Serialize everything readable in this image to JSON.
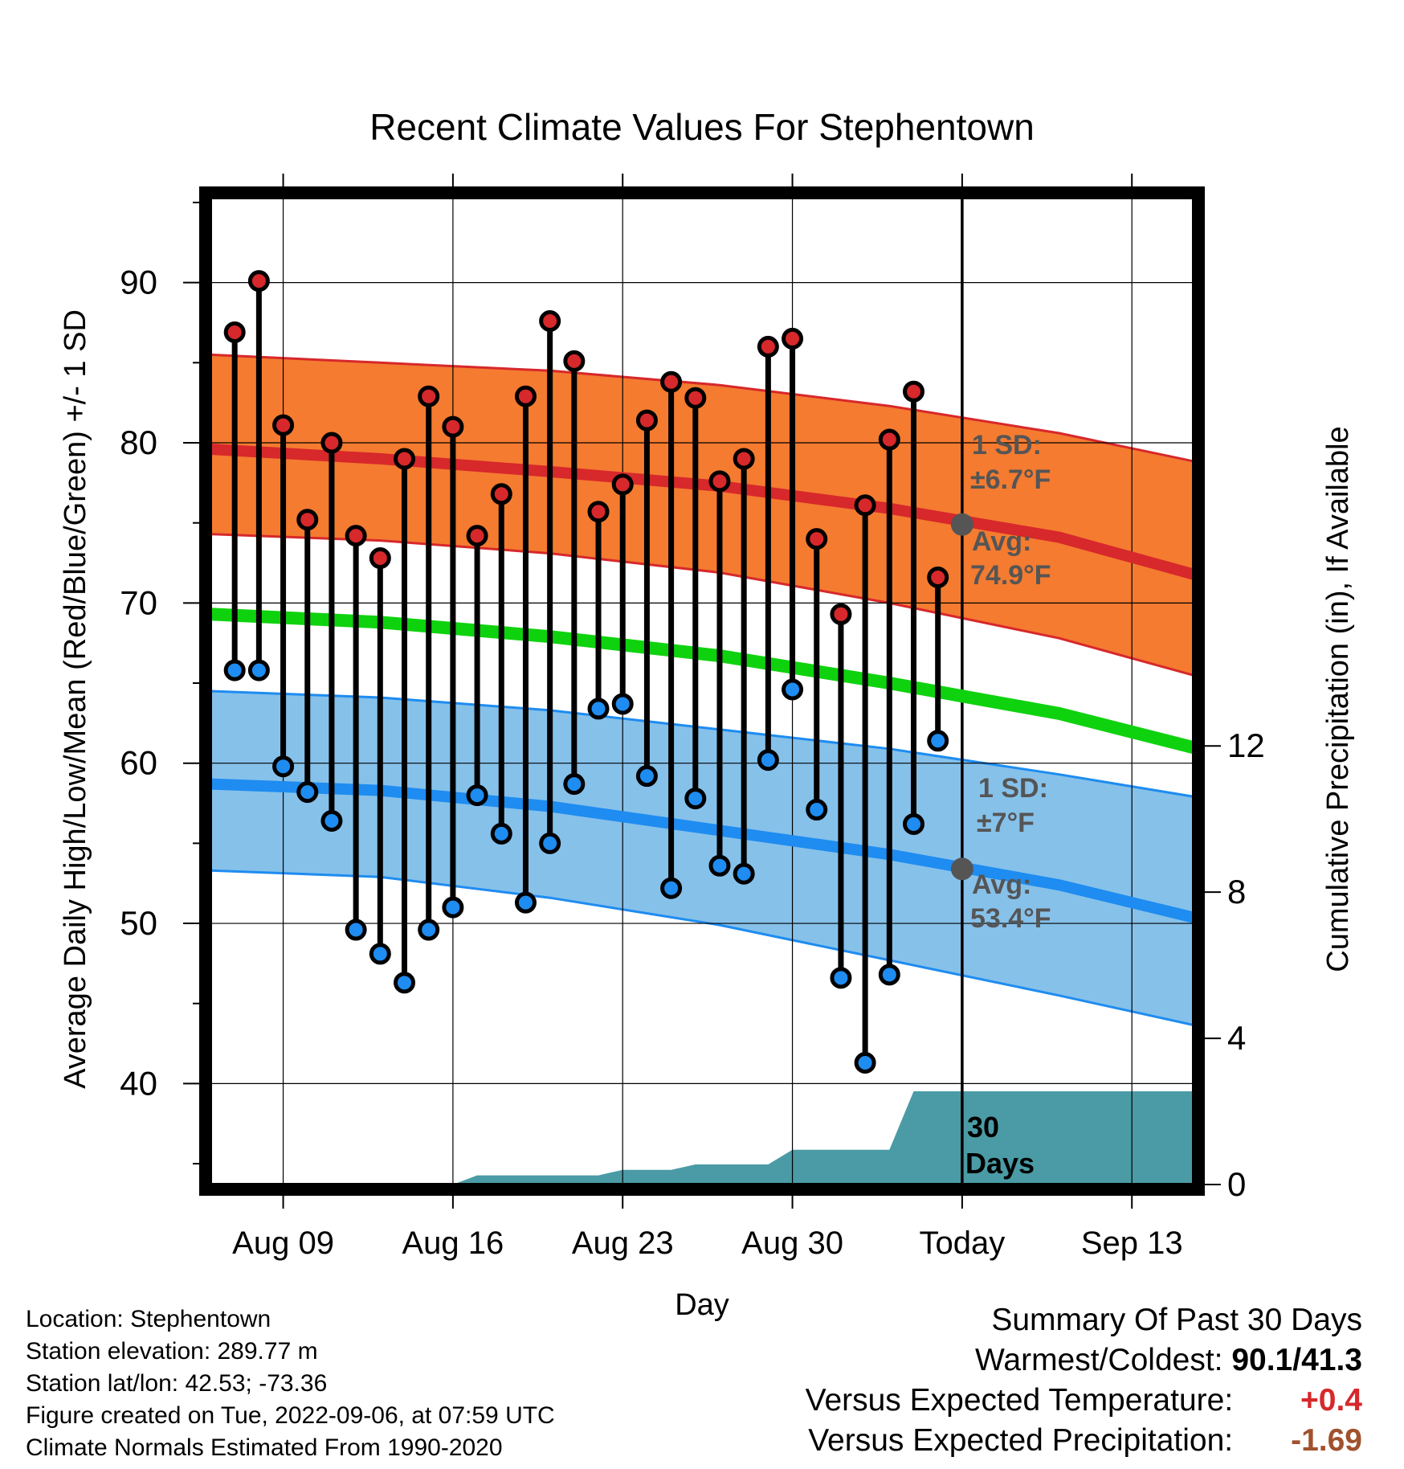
{
  "chart_data": {
    "type": "line",
    "title": "Recent Climate Values For Stephentown",
    "xlabel": "Day",
    "ylabel": "Average Daily High/Low/Mean (Red/Blue/Green) +/- 1 SD",
    "y2label": "Cumulative Precipitation (in), If Available",
    "x_ticks": [
      "Aug 09",
      "Aug 16",
      "Aug 23",
      "Aug 30",
      "Today",
      "Sep 13"
    ],
    "y_ticks": [
      "40",
      "50",
      "60",
      "70",
      "80",
      "90"
    ],
    "y2_ticks": [
      "0",
      "4",
      "8",
      "12"
    ],
    "ylim": [
      33.7,
      95.3
    ],
    "y2lim": [
      0,
      27
    ],
    "x_range_days": [
      "2022-08-06",
      "2022-09-16"
    ],
    "today": "2022-09-06",
    "observed": {
      "dates": [
        "2022-08-07",
        "2022-08-08",
        "2022-08-09",
        "2022-08-10",
        "2022-08-11",
        "2022-08-12",
        "2022-08-13",
        "2022-08-14",
        "2022-08-15",
        "2022-08-16",
        "2022-08-17",
        "2022-08-18",
        "2022-08-19",
        "2022-08-20",
        "2022-08-21",
        "2022-08-22",
        "2022-08-23",
        "2022-08-24",
        "2022-08-25",
        "2022-08-26",
        "2022-08-27",
        "2022-08-28",
        "2022-08-29",
        "2022-08-30",
        "2022-08-31",
        "2022-09-01",
        "2022-09-02",
        "2022-09-03",
        "2022-09-04",
        "2022-09-05"
      ],
      "high": [
        86.9,
        90.1,
        81.1,
        75.2,
        80.0,
        74.2,
        72.8,
        79.0,
        82.9,
        81.0,
        74.2,
        76.8,
        82.9,
        87.6,
        85.1,
        75.7,
        77.4,
        81.4,
        83.8,
        82.8,
        77.6,
        79.0,
        86.0,
        86.5,
        74.0,
        69.3,
        76.1,
        80.2,
        83.2,
        71.6
      ],
      "low": [
        65.8,
        65.8,
        59.8,
        58.2,
        56.4,
        49.6,
        48.1,
        46.3,
        49.6,
        51.0,
        58.0,
        55.6,
        51.3,
        55.0,
        58.7,
        63.4,
        63.7,
        59.2,
        52.2,
        57.8,
        53.6,
        53.1,
        60.2,
        64.6,
        57.1,
        46.6,
        41.3,
        46.8,
        56.2,
        61.4
      ]
    },
    "normals": {
      "dates": [
        "2022-08-06",
        "2022-08-13",
        "2022-08-20",
        "2022-08-27",
        "2022-09-03",
        "2022-09-10",
        "2022-09-16"
      ],
      "high_avg": [
        79.6,
        79.0,
        78.2,
        77.3,
        75.9,
        74.1,
        71.6
      ],
      "high_upper": [
        85.5,
        85.0,
        84.5,
        83.6,
        82.3,
        80.6,
        78.7
      ],
      "high_lower": [
        74.3,
        73.9,
        73.1,
        71.9,
        70.0,
        67.8,
        65.3
      ],
      "low_avg": [
        58.7,
        58.3,
        57.3,
        55.8,
        54.3,
        52.4,
        50.2
      ],
      "low_upper": [
        64.5,
        64.1,
        63.3,
        62.1,
        60.9,
        59.3,
        57.8
      ],
      "low_lower": [
        53.3,
        52.9,
        51.6,
        49.9,
        47.7,
        45.5,
        43.5
      ],
      "mean": [
        69.3,
        68.8,
        67.9,
        66.7,
        65.0,
        63.1,
        60.8
      ]
    },
    "precipitation_cumulative": {
      "dates": [
        "2022-08-06",
        "2022-08-16",
        "2022-08-17",
        "2022-08-22",
        "2022-08-23",
        "2022-08-25",
        "2022-08-26",
        "2022-08-29",
        "2022-08-30",
        "2022-09-03",
        "2022-09-04",
        "2022-09-16"
      ],
      "values": [
        0.0,
        0.0,
        0.25,
        0.25,
        0.4,
        0.4,
        0.55,
        0.55,
        0.95,
        0.95,
        2.55,
        2.55
      ]
    },
    "annotations": {
      "high_sd_label": "1 SD:",
      "high_sd_value": "±6.7°F",
      "high_avg_label": "Avg:",
      "high_avg_value": "74.9°F",
      "low_sd_label": "1 SD:",
      "low_sd_value": "±7°F",
      "low_avg_label": "Avg:",
      "low_avg_value": "53.4°F",
      "precip_days_line1": "30",
      "precip_days_line2": "Days"
    },
    "colors": {
      "high_band": "#f47b30",
      "high_line": "#d7282b",
      "low_band": "#86c1ea",
      "low_line": "#1e8cf0",
      "mean_line": "#0fd20f",
      "precip_fill": "#4a9ba5",
      "high_dot": "#d7282b",
      "low_dot": "#1e8cf0",
      "annotation_text": "#555555"
    },
    "grid": true
  },
  "info": {
    "location": "Location: Stephentown",
    "elevation": "Station elevation: 289.77 m",
    "latlon": "Station lat/lon: 42.53; -73.36",
    "created": "Figure created on Tue, 2022-09-06, at 07:59 UTC",
    "normals": "Climate Normals Estimated From 1990-2020"
  },
  "summary": {
    "title": "Summary Of Past 30 Days",
    "warm_cold_label": "Warmest/Coldest:",
    "warm_cold_value": "90.1/41.3",
    "temp_label": "Versus Expected Temperature:",
    "temp_value": "+0.4",
    "temp_color": "#d7282b",
    "precip_label": "Versus Expected Precipitation:",
    "precip_value": "-1.69",
    "precip_color": "#a0522d"
  }
}
